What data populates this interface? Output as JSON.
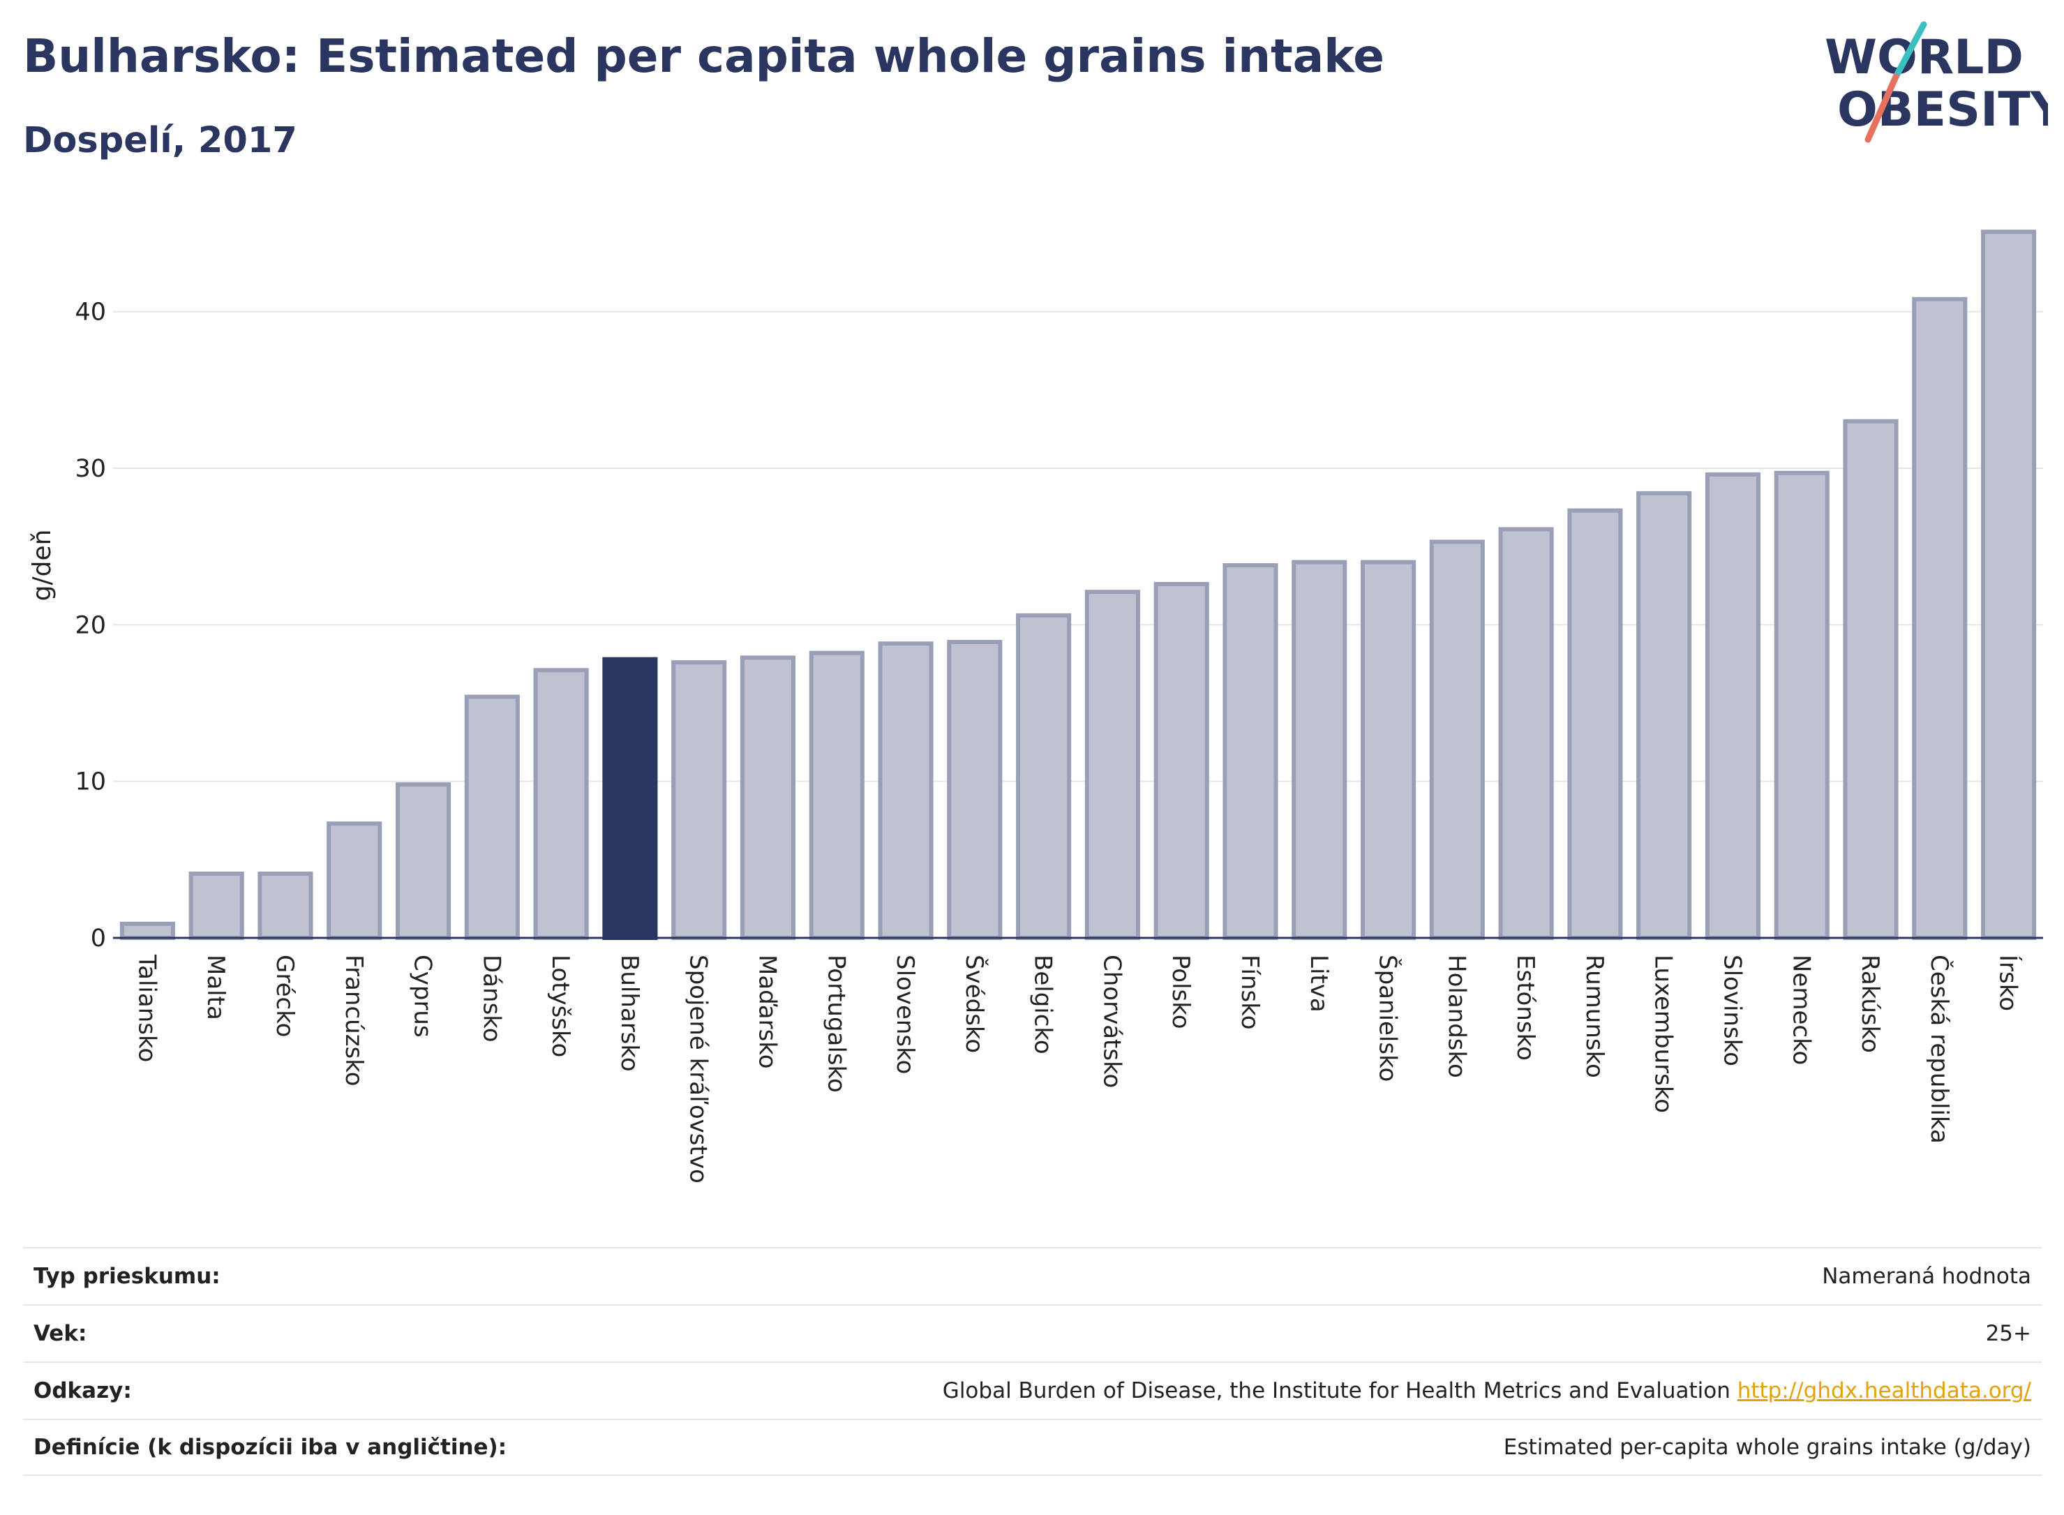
{
  "header": {
    "title": "Bulharsko: Estimated per capita whole grains intake",
    "subtitle": "Dospelí, 2017"
  },
  "logo": {
    "line1": "WORLD",
    "line2": "OBESITY",
    "accent_colors": [
      "#3bbfc1",
      "#e8705f"
    ]
  },
  "colors": {
    "highlight": "#2a3560",
    "bar_fill": "#bfc2d0",
    "bar_stroke": "#9a9fb8",
    "grid": "#e6e6e6",
    "axis": "#2a3560"
  },
  "chart_data": {
    "type": "bar",
    "ylabel": "g/deň",
    "ylim": [
      0,
      46
    ],
    "yticks": [
      0,
      10,
      20,
      30,
      40
    ],
    "grid": true,
    "highlight_category": "Bulharsko",
    "categories": [
      "Taliansko",
      "Malta",
      "Grécko",
      "Francúzsko",
      "Cyprus",
      "Dánsko",
      "Lotyšsko",
      "Bulharsko",
      "Spojené kráľovstvo",
      "Maďarsko",
      "Portugalsko",
      "Slovensko",
      "Švédsko",
      "Belgicko",
      "Chorvátsko",
      "Polsko",
      "Fínsko",
      "Litva",
      "Španielsko",
      "Holandsko",
      "Estónsko",
      "Rumunsko",
      "Luxembursko",
      "Slovinsko",
      "Nemecko",
      "Rakúsko",
      "Česká republika",
      "Írsko"
    ],
    "values": [
      0.9,
      4.1,
      4.1,
      7.3,
      9.8,
      15.4,
      17.1,
      17.8,
      17.6,
      17.9,
      18.2,
      18.8,
      18.9,
      20.6,
      22.1,
      22.6,
      23.8,
      24.0,
      24.0,
      25.3,
      26.1,
      27.3,
      28.4,
      29.6,
      29.7,
      33.0,
      40.8,
      45.1
    ]
  },
  "meta": {
    "rows": [
      {
        "key": "Typ prieskumu:",
        "value": "Nameraná hodnota"
      },
      {
        "key": "Vek:",
        "value": "25+"
      },
      {
        "key": "Odkazy:",
        "value": "Global Burden of Disease, the Institute for Health Metrics and Evaluation",
        "link": "http://ghdx.healthdata.org/"
      },
      {
        "key": "Definície (k dispozícii iba v angličtine):",
        "value": "Estimated per-capita whole grains intake (g/day)"
      }
    ]
  }
}
